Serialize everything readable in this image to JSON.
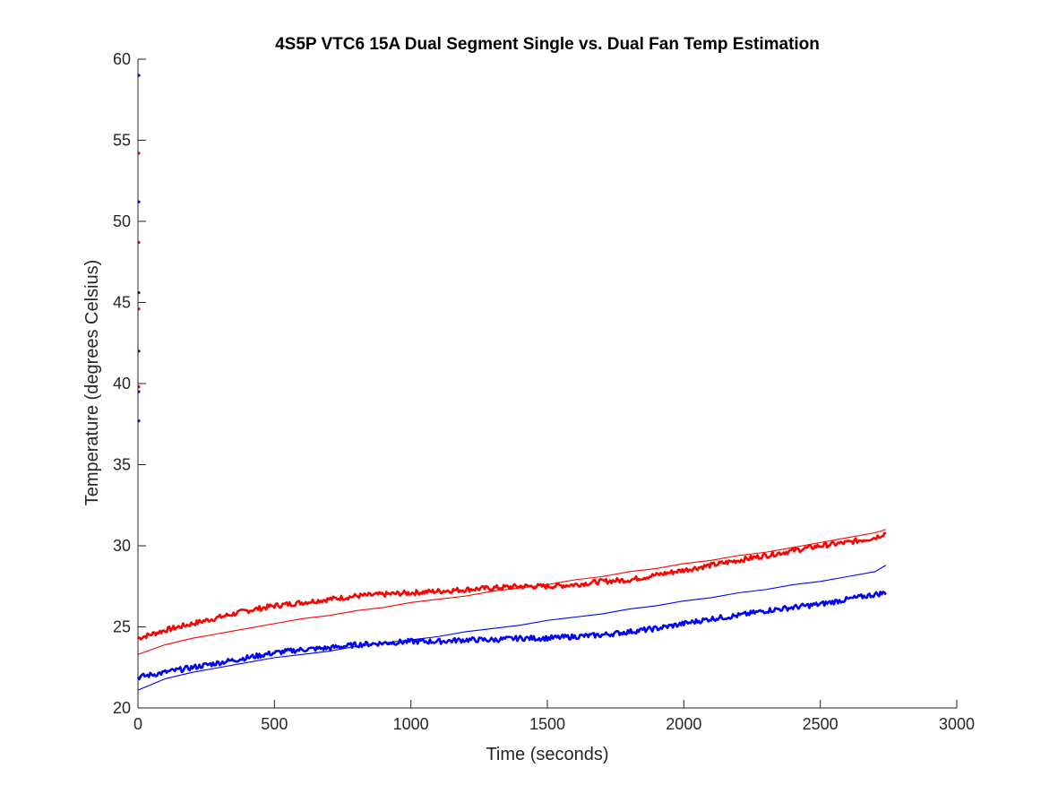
{
  "chart_data": {
    "type": "line",
    "title": "4S5P VTC6 15A Dual Segment Single vs. Dual Fan Temp Estimation",
    "xlabel": "Time (seconds)",
    "ylabel": "Temperature (degrees Celsius)",
    "xlim": [
      0,
      3000
    ],
    "ylim": [
      20,
      60
    ],
    "xticks": [
      0,
      500,
      1000,
      1500,
      2000,
      2500,
      3000
    ],
    "yticks": [
      20,
      25,
      30,
      35,
      40,
      45,
      50,
      55,
      60
    ],
    "xtick_labels": [
      "0",
      "500",
      "1000",
      "1500",
      "2000",
      "2500",
      "3000"
    ],
    "ytick_labels": [
      "20",
      "25",
      "30",
      "35",
      "40",
      "45",
      "50",
      "55",
      "60"
    ],
    "grid": false,
    "legend": "none",
    "colors": {
      "red": "#ff0000",
      "blue": "#0000ff"
    },
    "series": [
      {
        "color": "#ff0000",
        "style": "measured",
        "x": [
          0,
          100,
          200,
          300,
          400,
          500,
          600,
          700,
          800,
          900,
          1000,
          1100,
          1200,
          1300,
          1400,
          1500,
          1600,
          1700,
          1800,
          1900,
          2000,
          2100,
          2200,
          2300,
          2400,
          2500,
          2600,
          2700,
          2740
        ],
        "y": [
          24.3,
          24.8,
          25.2,
          25.6,
          26.0,
          26.3,
          26.5,
          26.7,
          26.9,
          27.0,
          27.1,
          27.2,
          27.3,
          27.4,
          27.5,
          27.5,
          27.6,
          27.8,
          27.9,
          28.2,
          28.5,
          28.8,
          29.1,
          29.4,
          29.7,
          30.0,
          30.2,
          30.5,
          30.8
        ]
      },
      {
        "color": "#0000ff",
        "style": "measured",
        "x": [
          0,
          100,
          200,
          300,
          400,
          500,
          600,
          700,
          800,
          900,
          1000,
          1100,
          1200,
          1300,
          1400,
          1500,
          1600,
          1700,
          1800,
          1900,
          2000,
          2100,
          2200,
          2300,
          2400,
          2500,
          2600,
          2700,
          2740
        ],
        "y": [
          21.9,
          22.2,
          22.5,
          22.8,
          23.1,
          23.4,
          23.6,
          23.7,
          23.9,
          24.0,
          24.1,
          24.1,
          24.2,
          24.2,
          24.3,
          24.3,
          24.4,
          24.5,
          24.7,
          24.9,
          25.2,
          25.5,
          25.7,
          26.0,
          26.2,
          26.4,
          26.7,
          27.0,
          27.1
        ]
      },
      {
        "color": "#ff0000",
        "style": "estimate",
        "x": [
          0,
          100,
          200,
          300,
          400,
          500,
          600,
          700,
          800,
          900,
          1000,
          1100,
          1200,
          1300,
          1400,
          1500,
          1600,
          1700,
          1800,
          1900,
          2000,
          2100,
          2200,
          2300,
          2400,
          2500,
          2600,
          2700,
          2740
        ],
        "y": [
          23.3,
          23.9,
          24.3,
          24.6,
          24.9,
          25.2,
          25.5,
          25.7,
          26.0,
          26.2,
          26.5,
          26.7,
          26.9,
          27.2,
          27.4,
          27.6,
          27.9,
          28.1,
          28.4,
          28.6,
          28.9,
          29.1,
          29.4,
          29.6,
          29.9,
          30.2,
          30.5,
          30.8,
          31.0
        ]
      },
      {
        "color": "#0000ff",
        "style": "estimate",
        "x": [
          0,
          100,
          200,
          300,
          400,
          500,
          600,
          700,
          800,
          900,
          1000,
          1100,
          1200,
          1300,
          1400,
          1500,
          1600,
          1700,
          1800,
          1900,
          2000,
          2100,
          2200,
          2300,
          2400,
          2500,
          2600,
          2700,
          2740
        ],
        "y": [
          21.1,
          21.8,
          22.2,
          22.5,
          22.8,
          23.1,
          23.3,
          23.5,
          23.8,
          24.0,
          24.2,
          24.4,
          24.7,
          24.9,
          25.1,
          25.4,
          25.6,
          25.8,
          26.1,
          26.3,
          26.6,
          26.8,
          27.1,
          27.3,
          27.6,
          27.8,
          28.1,
          28.4,
          28.8
        ]
      },
      {
        "color": "#0000ff",
        "style": "markers",
        "x": [
          0,
          0,
          0,
          0,
          0,
          0
        ],
        "y": [
          59.0,
          51.2,
          45.6,
          42.0,
          39.5,
          37.7
        ]
      },
      {
        "color": "#ff0000",
        "style": "markers",
        "x": [
          0,
          0,
          0,
          0
        ],
        "y": [
          54.2,
          48.7,
          44.6,
          39.8
        ]
      }
    ]
  }
}
